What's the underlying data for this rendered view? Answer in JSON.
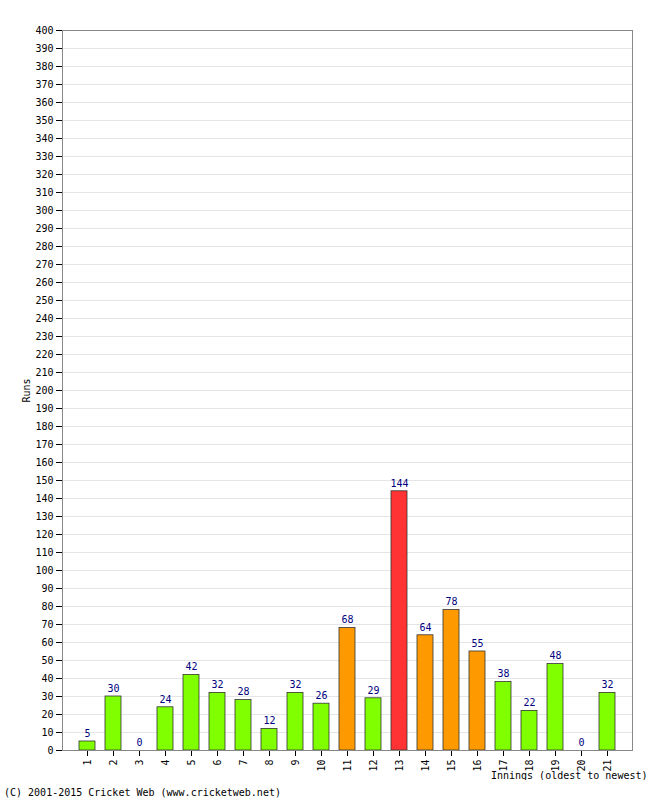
{
  "chart_data": {
    "type": "bar",
    "x_label": "Innings (oldest to newest)",
    "y_label": "Runs",
    "caption": "(C) 2001-2015 Cricket Web (www.cricketweb.net)",
    "categories": [
      "1",
      "2",
      "3",
      "4",
      "5",
      "6",
      "7",
      "8",
      "9",
      "10",
      "11",
      "12",
      "13",
      "14",
      "15",
      "16",
      "17",
      "18",
      "19",
      "20",
      "21"
    ],
    "values": [
      5,
      30,
      0,
      24,
      42,
      32,
      28,
      12,
      32,
      26,
      68,
      29,
      144,
      64,
      78,
      55,
      38,
      22,
      48,
      0,
      32
    ],
    "colors": [
      "#80ff00",
      "#80ff00",
      "#80ff00",
      "#80ff00",
      "#80ff00",
      "#80ff00",
      "#80ff00",
      "#80ff00",
      "#80ff00",
      "#80ff00",
      "#ff9900",
      "#80ff00",
      "#ff3333",
      "#ff9900",
      "#ff9900",
      "#ff9900",
      "#80ff00",
      "#80ff00",
      "#80ff00",
      "#80ff00",
      "#80ff00"
    ],
    "ylim": [
      0,
      400
    ],
    "yticks": [
      0,
      10,
      20,
      30,
      40,
      50,
      60,
      70,
      80,
      90,
      100,
      110,
      120,
      130,
      140,
      150,
      160,
      170,
      180,
      190,
      200,
      210,
      220,
      230,
      240,
      250,
      260,
      270,
      280,
      290,
      300,
      310,
      320,
      330,
      340,
      350,
      360,
      370,
      380,
      390,
      400
    ],
    "grid": true,
    "data_labels": true
  }
}
